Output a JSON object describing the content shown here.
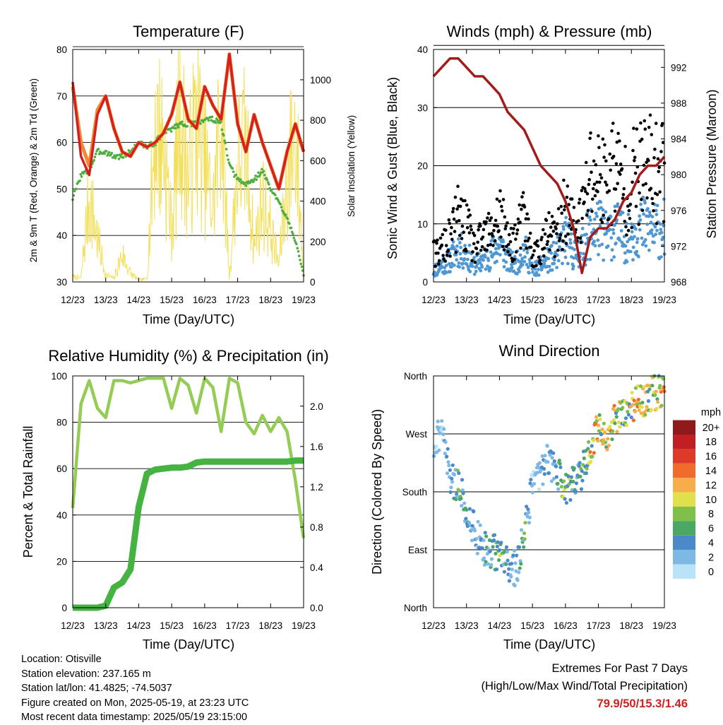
{
  "x_ticks": [
    "12/23",
    "13/23",
    "14/23",
    "15/23",
    "16/23",
    "17/23",
    "18/23",
    "19/23"
  ],
  "colors": {
    "temp_9m": "#d42020",
    "temp_2m": "#f08a30",
    "dewpoint": "#4fae3e",
    "solar": "#f3df5a",
    "wind_gust": "#000000",
    "wind_speed": "#4e97d2",
    "pressure": "#a31b1b",
    "rh": "#95cc55",
    "precip": "#45b341",
    "extremes_text": "#cc2222"
  },
  "panels": {
    "temperature": {
      "title": "Temperature (F)",
      "xlabel": "Time (Day/UTC)",
      "ylabel_left": "2m & 9m T (Red, Orange) & 2m Td (Green)",
      "ylabel_right": "Solar Insolation (Yellow)",
      "left_ticks": [
        "30",
        "40",
        "50",
        "60",
        "70",
        "80"
      ],
      "right_ticks": [
        "0",
        "200",
        "400",
        "600",
        "800",
        "1000"
      ]
    },
    "winds": {
      "title": "Winds (mph) & Pressure (mb)",
      "xlabel": "Time (Day/UTC)",
      "ylabel_left": "Sonic Wind & Gust (Blue, Black)",
      "ylabel_right": "Station Pressure (Maroon)",
      "left_ticks": [
        "0",
        "10",
        "20",
        "30",
        "40"
      ],
      "right_ticks": [
        "968",
        "972",
        "976",
        "980",
        "984",
        "988",
        "992"
      ]
    },
    "humidity": {
      "title": "Relative Humidity (%) & Precipitation (in)",
      "xlabel": "Time (Day/UTC)",
      "ylabel_left": "Percent & Total Rainfall",
      "left_ticks": [
        "0",
        "20",
        "40",
        "60",
        "80",
        "100"
      ],
      "right_ticks": [
        "0.0",
        "0.4",
        "0.8",
        "1.2",
        "1.6",
        "2.0"
      ]
    },
    "direction": {
      "title": "Wind Direction",
      "xlabel": "Time (Day/UTC)",
      "ylabel_left": "Direction (Colored By Speed)",
      "left_ticks": [
        "North",
        "East",
        "South",
        "West",
        "North"
      ],
      "legend_title": "mph",
      "legend_labels": [
        "0",
        "2",
        "4",
        "6",
        "8",
        "10",
        "12",
        "14",
        "16",
        "18",
        "20+"
      ],
      "legend_colors": [
        "#b9e3f8",
        "#7eb9e5",
        "#4a8ac8",
        "#4aa864",
        "#7ec04a",
        "#e0df4c",
        "#f7ad4a",
        "#ef6c2c",
        "#dd3a2a",
        "#c11f24",
        "#8f1a1a"
      ]
    }
  },
  "footer": {
    "location": "Location: Otisville",
    "elevation": "Station elevation: 237.165 m",
    "latlon": "Station lat/lon: 41.4825; -74.5037",
    "created": "Figure created on Mon, 2025-05-19, at 23:23 UTC",
    "recent": "Most recent data timestamp: 2025/05/19 23:15:00",
    "extremes_title": "Extremes For Past 7 Days",
    "extremes_subtitle": "(High/Low/Max Wind/Total Precipitation)",
    "extremes_values": "79.9/50/15.3/1.46"
  },
  "chart_data": [
    {
      "type": "line",
      "title": "Temperature (F)",
      "xlabel": "Time (Day/UTC)",
      "x": [
        0,
        0.25,
        0.5,
        0.75,
        1.0,
        1.25,
        1.5,
        1.75,
        2.0,
        2.25,
        2.5,
        2.75,
        3.0,
        3.25,
        3.5,
        3.75,
        4.0,
        4.25,
        4.5,
        4.75,
        5.0,
        5.25,
        5.5,
        5.75,
        6.0,
        6.25,
        6.5,
        6.75,
        7.0
      ],
      "ylim": [
        30,
        80
      ],
      "y2lim": [
        0,
        1150
      ],
      "series": [
        {
          "axis": "left",
          "values": [
            73,
            57,
            53,
            66,
            70,
            63,
            58,
            57,
            60,
            59,
            60,
            62,
            66,
            73,
            65,
            63,
            72,
            68,
            65,
            79,
            64,
            58,
            66,
            60,
            55,
            50,
            58,
            64,
            58
          ]
        },
        {
          "axis": "left",
          "values": [
            72,
            60,
            55,
            67,
            70,
            63,
            58,
            57,
            60,
            59,
            60,
            62,
            66,
            73,
            65,
            63,
            72,
            68,
            65,
            79,
            64,
            58,
            66,
            60,
            55,
            50,
            58,
            64,
            58
          ]
        },
        {
          "axis": "left",
          "values": [
            48,
            53,
            54,
            58,
            58,
            57,
            57,
            58,
            60,
            59,
            60,
            62,
            63,
            64,
            64,
            64,
            65,
            65,
            64,
            55,
            52,
            51,
            52,
            54,
            50,
            47,
            44,
            39,
            31
          ]
        },
        {
          "axis": "right",
          "values": [
            30,
            20,
            500,
            250,
            40,
            20,
            160,
            50,
            10,
            20,
            900,
            800,
            300,
            1000,
            600,
            950,
            700,
            400,
            1050,
            20,
            700,
            800,
            200,
            500,
            300,
            100,
            600,
            900,
            40
          ]
        }
      ]
    },
    {
      "type": "scatter",
      "title": "Winds (mph) & Pressure (mb)",
      "xlabel": "Time (Day/UTC)",
      "x": [
        0,
        0.25,
        0.5,
        0.75,
        1.0,
        1.25,
        1.5,
        1.75,
        2.0,
        2.25,
        2.5,
        2.75,
        3.0,
        3.25,
        3.5,
        3.75,
        4.0,
        4.25,
        4.5,
        4.75,
        5.0,
        5.25,
        5.5,
        5.75,
        6.0,
        6.25,
        6.5,
        6.75,
        7.0
      ],
      "ylim": [
        0,
        40
      ],
      "y2lim": [
        968,
        994
      ],
      "series": [
        {
          "axis": "left",
          "values": [
            5,
            6,
            8,
            12,
            10,
            6,
            8,
            9,
            13,
            7,
            8,
            12,
            5,
            6,
            9,
            8,
            14,
            10,
            12,
            20,
            20,
            18,
            22,
            17,
            19,
            20,
            21,
            20,
            22
          ]
        },
        {
          "axis": "left",
          "values": [
            2,
            3,
            4,
            6,
            5,
            3,
            4,
            5,
            7,
            4,
            3,
            6,
            2,
            3,
            4,
            5,
            8,
            5,
            6,
            9,
            10,
            8,
            10,
            8,
            9,
            10,
            10,
            9,
            10
          ]
        },
        {
          "axis": "right",
          "values": [
            991,
            992,
            993,
            993,
            992,
            991,
            991,
            990,
            989,
            987,
            986,
            985,
            983,
            981,
            980,
            979,
            977,
            974,
            969,
            973,
            974,
            974,
            975,
            977,
            978,
            980,
            981,
            981,
            982
          ]
        }
      ]
    },
    {
      "type": "line",
      "title": "Relative Humidity (%) & Precipitation (in)",
      "xlabel": "Time (Day/UTC)",
      "x": [
        0,
        0.25,
        0.5,
        0.75,
        1.0,
        1.25,
        1.5,
        1.75,
        2.0,
        2.25,
        2.5,
        2.75,
        3.0,
        3.25,
        3.5,
        3.75,
        4.0,
        4.25,
        4.5,
        4.75,
        5.0,
        5.25,
        5.5,
        5.75,
        6.0,
        6.25,
        6.5,
        6.75,
        7.0
      ],
      "ylim": [
        0,
        100
      ],
      "y2lim": [
        0,
        2.3
      ],
      "series": [
        {
          "axis": "left",
          "values": [
            43,
            88,
            98,
            86,
            82,
            98,
            98,
            97,
            98,
            99,
            99,
            99,
            86,
            99,
            96,
            84,
            99,
            95,
            76,
            99,
            97,
            80,
            75,
            83,
            76,
            82,
            76,
            55,
            30
          ]
        },
        {
          "axis": "right",
          "values": [
            0,
            0,
            0,
            0,
            0.02,
            0.2,
            0.25,
            0.38,
            1.0,
            1.33,
            1.37,
            1.38,
            1.39,
            1.39,
            1.4,
            1.44,
            1.45,
            1.45,
            1.45,
            1.45,
            1.45,
            1.45,
            1.45,
            1.45,
            1.45,
            1.45,
            1.45,
            1.46,
            1.46
          ]
        }
      ]
    },
    {
      "type": "scatter",
      "title": "Wind Direction",
      "xlabel": "Time (Day/UTC)",
      "ylabel": "Direction (Colored By Speed)",
      "x": [
        0,
        0.25,
        0.5,
        0.75,
        1.0,
        1.25,
        1.5,
        1.75,
        2.0,
        2.25,
        2.5,
        2.75,
        3.0,
        3.25,
        3.5,
        3.75,
        4.0,
        4.25,
        4.5,
        4.75,
        5.0,
        5.25,
        5.5,
        5.75,
        6.0,
        6.25,
        6.5,
        6.75,
        7.0
      ],
      "series": [
        {
          "values": [
            250,
            280,
            200,
            190,
            150,
            120,
            95,
            90,
            80,
            70,
            60,
            110,
            190,
            215,
            230,
            210,
            185,
            200,
            210,
            250,
            280,
            270,
            290,
            300,
            310,
            320,
            330,
            335,
            340
          ]
        }
      ]
    }
  ]
}
